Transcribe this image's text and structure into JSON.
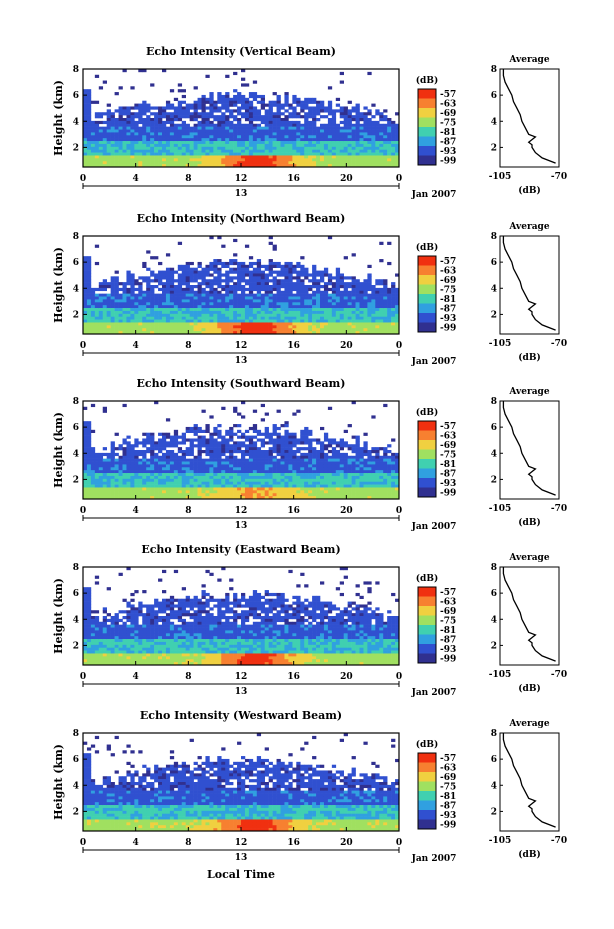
{
  "panels": [
    {
      "title": "Echo Intensity (Vertical Beam)"
    },
    {
      "title": "Echo Intensity (Northward Beam)"
    },
    {
      "title": "Echo Intensity (Southward Beam)"
    },
    {
      "title": "Echo Intensity (Eastward Beam)"
    },
    {
      "title": "Echo Intensity (Westward Beam)"
    }
  ],
  "common": {
    "ylabel": "Height (km)",
    "date_label": "Jan 2007",
    "xlabel": "Local Time",
    "day_label": "13",
    "colorbar_unit": "(dB)",
    "avg_title": "Average",
    "avg_xlabel": "(dB)"
  },
  "chart_data": {
    "type": "heatmap",
    "x_ticks": [
      "0",
      "4",
      "8",
      "12",
      "16",
      "20",
      "0"
    ],
    "x_tick_hours": [
      0,
      4,
      8,
      12,
      16,
      20,
      24
    ],
    "xlim": [
      0,
      24
    ],
    "y_ticks": [
      "8",
      "6",
      "4",
      "2"
    ],
    "y_tick_values": [
      8,
      6,
      4,
      2
    ],
    "ylim": [
      0.5,
      8
    ],
    "colorbar_ticks": [
      "-57",
      "-63",
      "-69",
      "-75",
      "-81",
      "-87",
      "-93",
      "-99"
    ],
    "colorbar_values": [
      -57,
      -63,
      -69,
      -75,
      -81,
      -87,
      -93,
      -99
    ],
    "colorbar_colors": [
      "#f03010",
      "#f78030",
      "#f0d040",
      "#a0e060",
      "#40d0b0",
      "#30a0e0",
      "#3050d0",
      "#303090"
    ],
    "avg_x_ticks": [
      "-105",
      "-70"
    ],
    "avg_xlim": [
      -105,
      -70
    ],
    "avg_y_ticks": [
      "8",
      "6",
      "4",
      "2"
    ],
    "avg_profile": {
      "height_km": [
        8,
        7.5,
        7,
        6.5,
        6,
        5.5,
        5,
        4.5,
        4,
        3.5,
        3,
        2.8,
        2.6,
        2.4,
        2.2,
        2,
        1.6,
        1.2,
        0.8
      ],
      "db": [
        -103,
        -103,
        -102,
        -100,
        -98,
        -97,
        -95,
        -93,
        -92,
        -90,
        -88,
        -84,
        -86,
        -88,
        -86,
        -86,
        -84,
        -80,
        -72
      ]
    }
  }
}
